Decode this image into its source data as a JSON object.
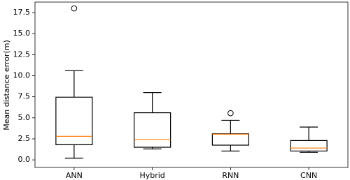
{
  "chart_data": {
    "type": "box",
    "y_label": "Mean distance error(m)",
    "categories": [
      "ANN",
      "Hybrid",
      "RNN",
      "CNN"
    ],
    "boxes": [
      {
        "min": 0.2,
        "q1": 1.8,
        "median": 2.8,
        "q3": 7.45,
        "max": 10.6,
        "outliers": [
          18.0
        ]
      },
      {
        "min": 1.3,
        "q1": 1.5,
        "median": 2.4,
        "q3": 5.6,
        "max": 8.0,
        "outliers": []
      },
      {
        "min": 1.05,
        "q1": 1.75,
        "median": 3.05,
        "q3": 3.1,
        "max": 4.7,
        "outliers": [
          5.55
        ]
      },
      {
        "min": 0.9,
        "q1": 1.05,
        "median": 1.4,
        "q3": 2.3,
        "max": 3.9,
        "outliers": []
      }
    ],
    "box_color": "#000000",
    "median_color": "#ff7f0e",
    "ylim": [
      -0.9,
      18.75
    ],
    "yticks": [
      {
        "value": 0,
        "label": "0.0"
      },
      {
        "value": 2.5,
        "label": "2.5"
      },
      {
        "value": 5,
        "label": "5.0"
      },
      {
        "value": 7.5,
        "label": "7.5"
      },
      {
        "value": 10,
        "label": "10.0"
      },
      {
        "value": 12.5,
        "label": "12.5"
      },
      {
        "value": 15,
        "label": "15.0"
      },
      {
        "value": 17.5,
        "label": "17.5"
      }
    ]
  }
}
